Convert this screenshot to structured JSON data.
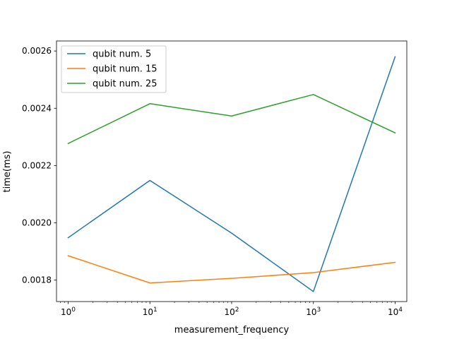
{
  "chart_data": {
    "type": "line",
    "xscale": "log",
    "x": [
      1,
      10,
      100,
      1000,
      10000
    ],
    "x_tick_labels": [
      {
        "base": "10",
        "exp": "0"
      },
      {
        "base": "10",
        "exp": "1"
      },
      {
        "base": "10",
        "exp": "2"
      },
      {
        "base": "10",
        "exp": "3"
      },
      {
        "base": "10",
        "exp": "4"
      }
    ],
    "y_ticks": [
      0.0018,
      0.002,
      0.0022,
      0.0024,
      0.0026
    ],
    "y_tick_labels": [
      "0.0018",
      "0.0020",
      "0.0022",
      "0.0024",
      "0.0026"
    ],
    "xlim": [
      0.72,
      13900
    ],
    "ylim": [
      0.001725,
      0.002635
    ],
    "xlabel": "measurement_frequency",
    "ylabel": "time(ms)",
    "grid": false,
    "legend_position": "top-left",
    "series": [
      {
        "name": "qubit num. 5",
        "color": "#1f77b4",
        "values": [
          0.001948,
          0.002148,
          0.001964,
          0.00176,
          0.00258
        ]
      },
      {
        "name": "qubit num. 15",
        "color": "#ff7f0e",
        "values": [
          0.001885,
          0.00179,
          0.001806,
          0.001826,
          0.001862
        ]
      },
      {
        "name": "qubit num. 25",
        "color": "#2ca02c",
        "values": [
          0.002277,
          0.002416,
          0.002373,
          0.002448,
          0.002314
        ]
      }
    ]
  }
}
